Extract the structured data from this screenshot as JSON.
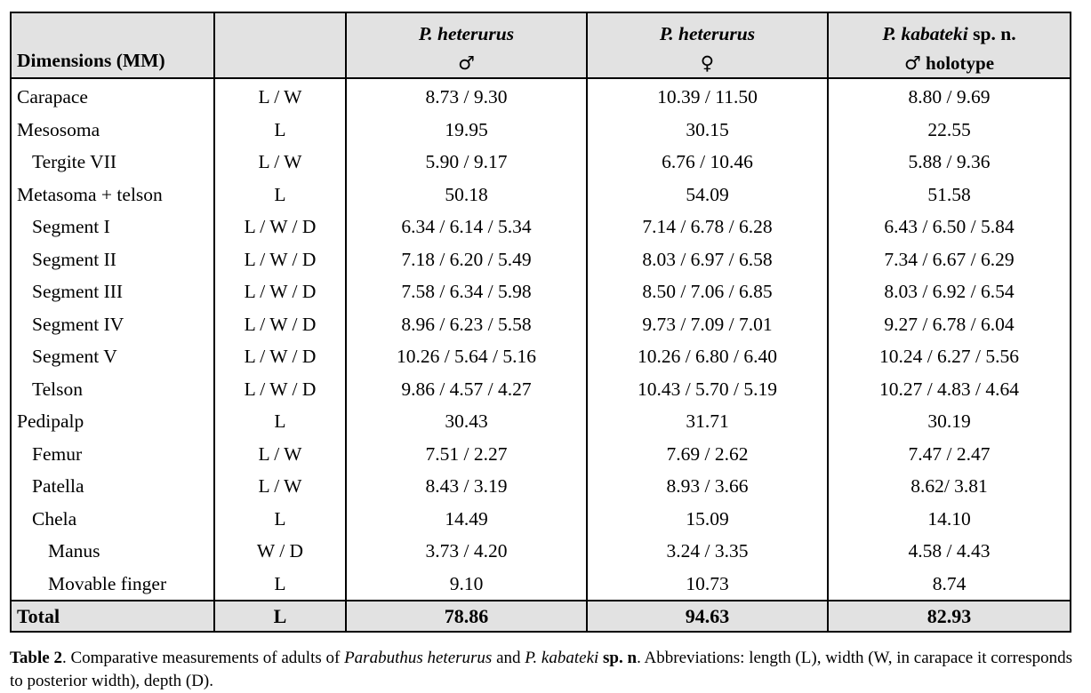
{
  "table": {
    "header": {
      "dimensions_label": "Dimensions (MM)",
      "measure_label": "",
      "columns": [
        {
          "species": "P. heterurus",
          "sex_symbol": "♂",
          "suffix": ""
        },
        {
          "species": "P. heterurus",
          "sex_symbol": "♀",
          "suffix": ""
        },
        {
          "species": "P. kabateki",
          "species_suffix": " sp. n.",
          "sex_symbol": "♂",
          "suffix": " holotype"
        }
      ]
    },
    "rows": [
      {
        "name": "Carapace",
        "level": 0,
        "measure": "L / W",
        "values": [
          "8.73 / 9.30",
          "10.39 / 11.50",
          "8.80 / 9.69"
        ]
      },
      {
        "name": "Mesosoma",
        "level": 0,
        "measure": "L",
        "values": [
          "19.95",
          "30.15",
          "22.55"
        ]
      },
      {
        "name": "Tergite VII",
        "level": 1,
        "measure": "L / W",
        "values": [
          "5.90 / 9.17",
          "6.76 / 10.46",
          "5.88 / 9.36"
        ]
      },
      {
        "name": "Metasoma + telson",
        "level": 0,
        "measure": "L",
        "values": [
          "50.18",
          "54.09",
          "51.58"
        ]
      },
      {
        "name": "Segment I",
        "level": 1,
        "measure": "L / W / D",
        "values": [
          "6.34 / 6.14 / 5.34",
          "7.14 / 6.78 / 6.28",
          "6.43 / 6.50 / 5.84"
        ]
      },
      {
        "name": "Segment II",
        "level": 1,
        "measure": "L / W / D",
        "values": [
          "7.18 / 6.20 / 5.49",
          "8.03 / 6.97 / 6.58",
          "7.34 / 6.67 / 6.29"
        ]
      },
      {
        "name": "Segment III",
        "level": 1,
        "measure": "L / W / D",
        "values": [
          "7.58 / 6.34 / 5.98",
          "8.50 / 7.06 / 6.85",
          "8.03 / 6.92 / 6.54"
        ]
      },
      {
        "name": "Segment IV",
        "level": 1,
        "measure": "L / W / D",
        "values": [
          "8.96 / 6.23 / 5.58",
          "9.73 / 7.09 / 7.01",
          "9.27 / 6.78 / 6.04"
        ]
      },
      {
        "name": "Segment V",
        "level": 1,
        "measure": "L / W / D",
        "values": [
          "10.26 / 5.64 / 5.16",
          "10.26 / 6.80 / 6.40",
          "10.24 / 6.27 / 5.56"
        ]
      },
      {
        "name": "Telson",
        "level": 1,
        "measure": "L / W / D",
        "values": [
          "9.86 / 4.57 / 4.27",
          "10.43 / 5.70 / 5.19",
          "10.27 / 4.83 / 4.64"
        ]
      },
      {
        "name": "Pedipalp",
        "level": 0,
        "measure": "L",
        "values": [
          "30.43",
          "31.71",
          "30.19"
        ]
      },
      {
        "name": "Femur",
        "level": 1,
        "measure": "L / W",
        "values": [
          "7.51 / 2.27",
          "7.69 / 2.62",
          "7.47 / 2.47"
        ]
      },
      {
        "name": "Patella",
        "level": 1,
        "measure": "L / W",
        "values": [
          "8.43 / 3.19",
          "8.93 / 3.66",
          "8.62/ 3.81"
        ]
      },
      {
        "name": "Chela",
        "level": 1,
        "measure": "L",
        "values": [
          "14.49",
          "15.09",
          "14.10"
        ]
      },
      {
        "name": "Manus",
        "level": 2,
        "measure": "W / D",
        "values": [
          "3.73 / 4.20",
          "3.24 / 3.35",
          "4.58 / 4.43"
        ]
      },
      {
        "name": "Movable finger",
        "level": 2,
        "measure": "L",
        "values": [
          "9.10",
          "10.73",
          "8.74"
        ]
      }
    ],
    "total": {
      "name": "Total",
      "measure": "L",
      "values": [
        "78.86",
        "94.63",
        "82.93"
      ]
    }
  },
  "caption": {
    "label": "Table 2",
    "text_1": ". Comparative measurements of adults of ",
    "species_1": "Parabuthus heterurus",
    "text_2": " and ",
    "species_2": "P. kabateki",
    "text_3": " ",
    "sp_n": "sp. n",
    "text_4": ". Abbreviations: length (L), width (W, in carapace it corresponds to posterior width), depth (D)."
  }
}
